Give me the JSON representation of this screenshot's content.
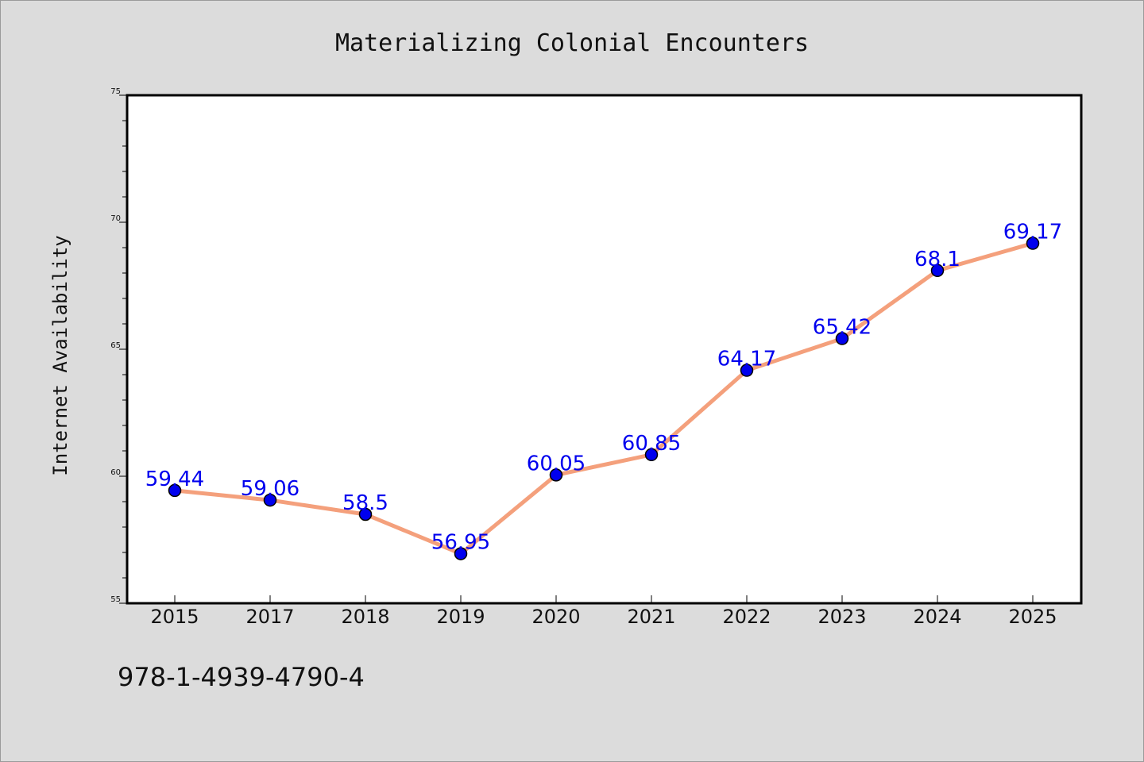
{
  "chart_data": {
    "type": "line",
    "title": "Materializing Colonial Encounters",
    "xlabel": "",
    "ylabel": "Internet Availability",
    "categories": [
      "2015",
      "2017",
      "2018",
      "2019",
      "2020",
      "2021",
      "2022",
      "2023",
      "2024",
      "2025"
    ],
    "series": [
      {
        "values": [
          59.44,
          59.06,
          58.5,
          56.95,
          60.05,
          60.85,
          64.17,
          65.42,
          68.1,
          69.17
        ]
      }
    ],
    "data_labels": [
      "59.44",
      "59.06",
      "58.5",
      "56.95",
      "60.05",
      "60.85",
      "64.17",
      "65.42",
      "68.1",
      "69.17"
    ],
    "ylim": [
      55,
      75
    ],
    "yticks": [
      "55",
      "60",
      "65",
      "70",
      "75"
    ],
    "grid": false,
    "legend": "none",
    "line_color": "#f4a07c",
    "marker_color": "#0000ee",
    "label_color": "#0000ee"
  },
  "footer_text": "978-1-4939-4790-4"
}
